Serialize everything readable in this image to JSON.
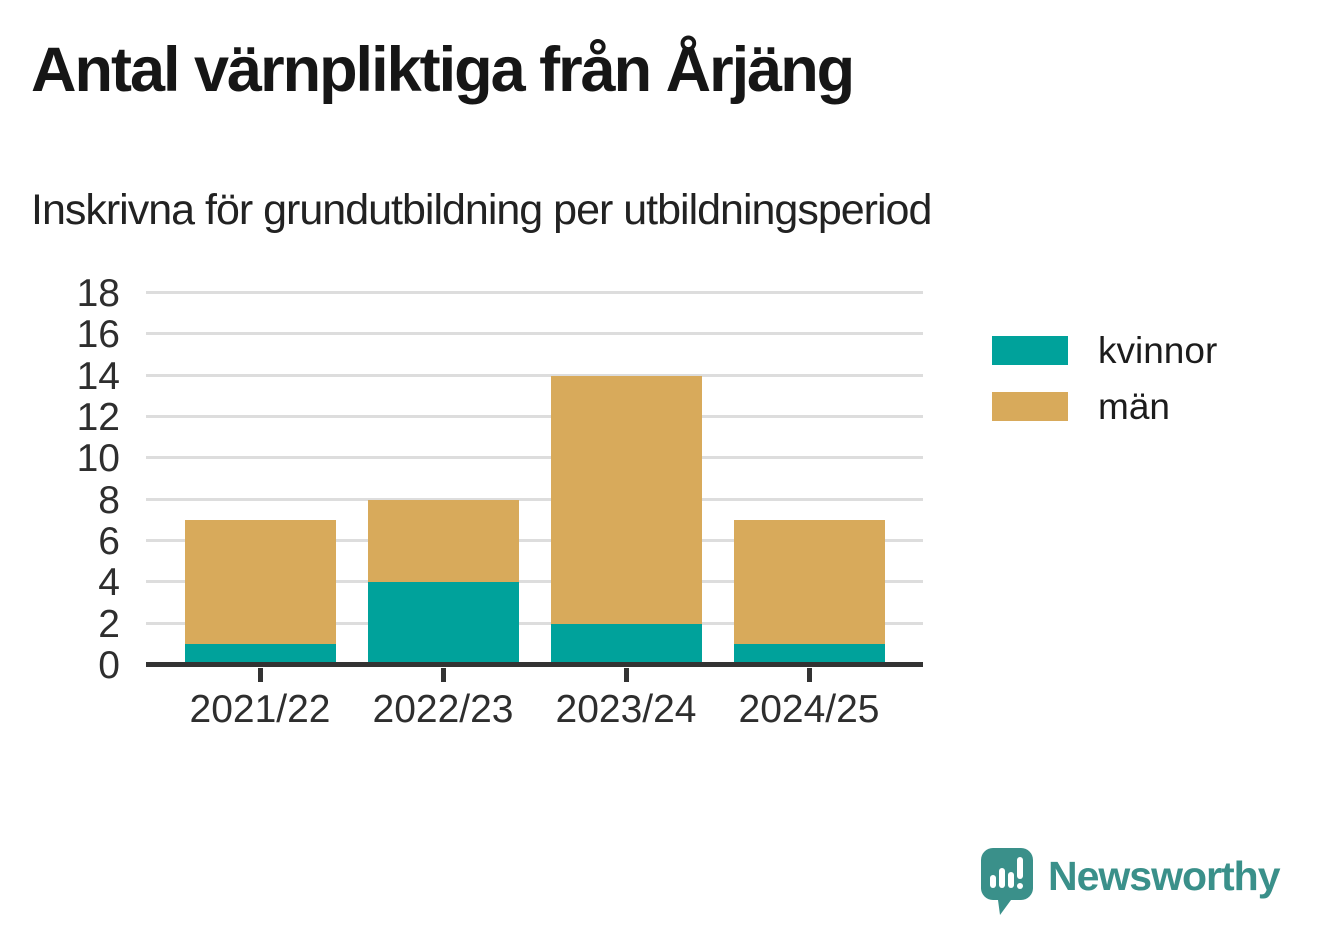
{
  "header": {
    "title": "Antal värnpliktiga från Årjäng",
    "subtitle": "Inskrivna för grundutbildning per utbildningsperiod"
  },
  "chart_data": {
    "type": "bar",
    "stacked": true,
    "categories": [
      "2021/22",
      "2022/23",
      "2023/24",
      "2024/25"
    ],
    "series": [
      {
        "name": "kvinnor",
        "color": "#00a29b",
        "values": [
          1,
          4,
          2,
          1
        ]
      },
      {
        "name": "män",
        "color": "#d8aa5b",
        "values": [
          6,
          4,
          12,
          6
        ]
      }
    ],
    "totals": [
      7,
      8,
      14,
      7
    ],
    "title": "Antal värnpliktiga från Årjäng",
    "subtitle": "Inskrivna för grundutbildning per utbildningsperiod",
    "xlabel": "",
    "ylabel": "",
    "ylim": [
      0,
      18
    ],
    "yticks": [
      0,
      2,
      4,
      6,
      8,
      10,
      12,
      14,
      16,
      18
    ],
    "grid": true,
    "legend_position": "right"
  },
  "legend": {
    "items": [
      {
        "label": "kvinnor",
        "color": "#00a29b"
      },
      {
        "label": "män",
        "color": "#d8aa5b"
      }
    ]
  },
  "branding": {
    "logo_text": "Newsworthy",
    "color": "#3a908a"
  },
  "colors": {
    "kvinnor": "#00a29b",
    "man": "#d8aa5b",
    "gridline": "#dddddd",
    "axis": "#333333",
    "brand_teal": "#3a908a"
  }
}
